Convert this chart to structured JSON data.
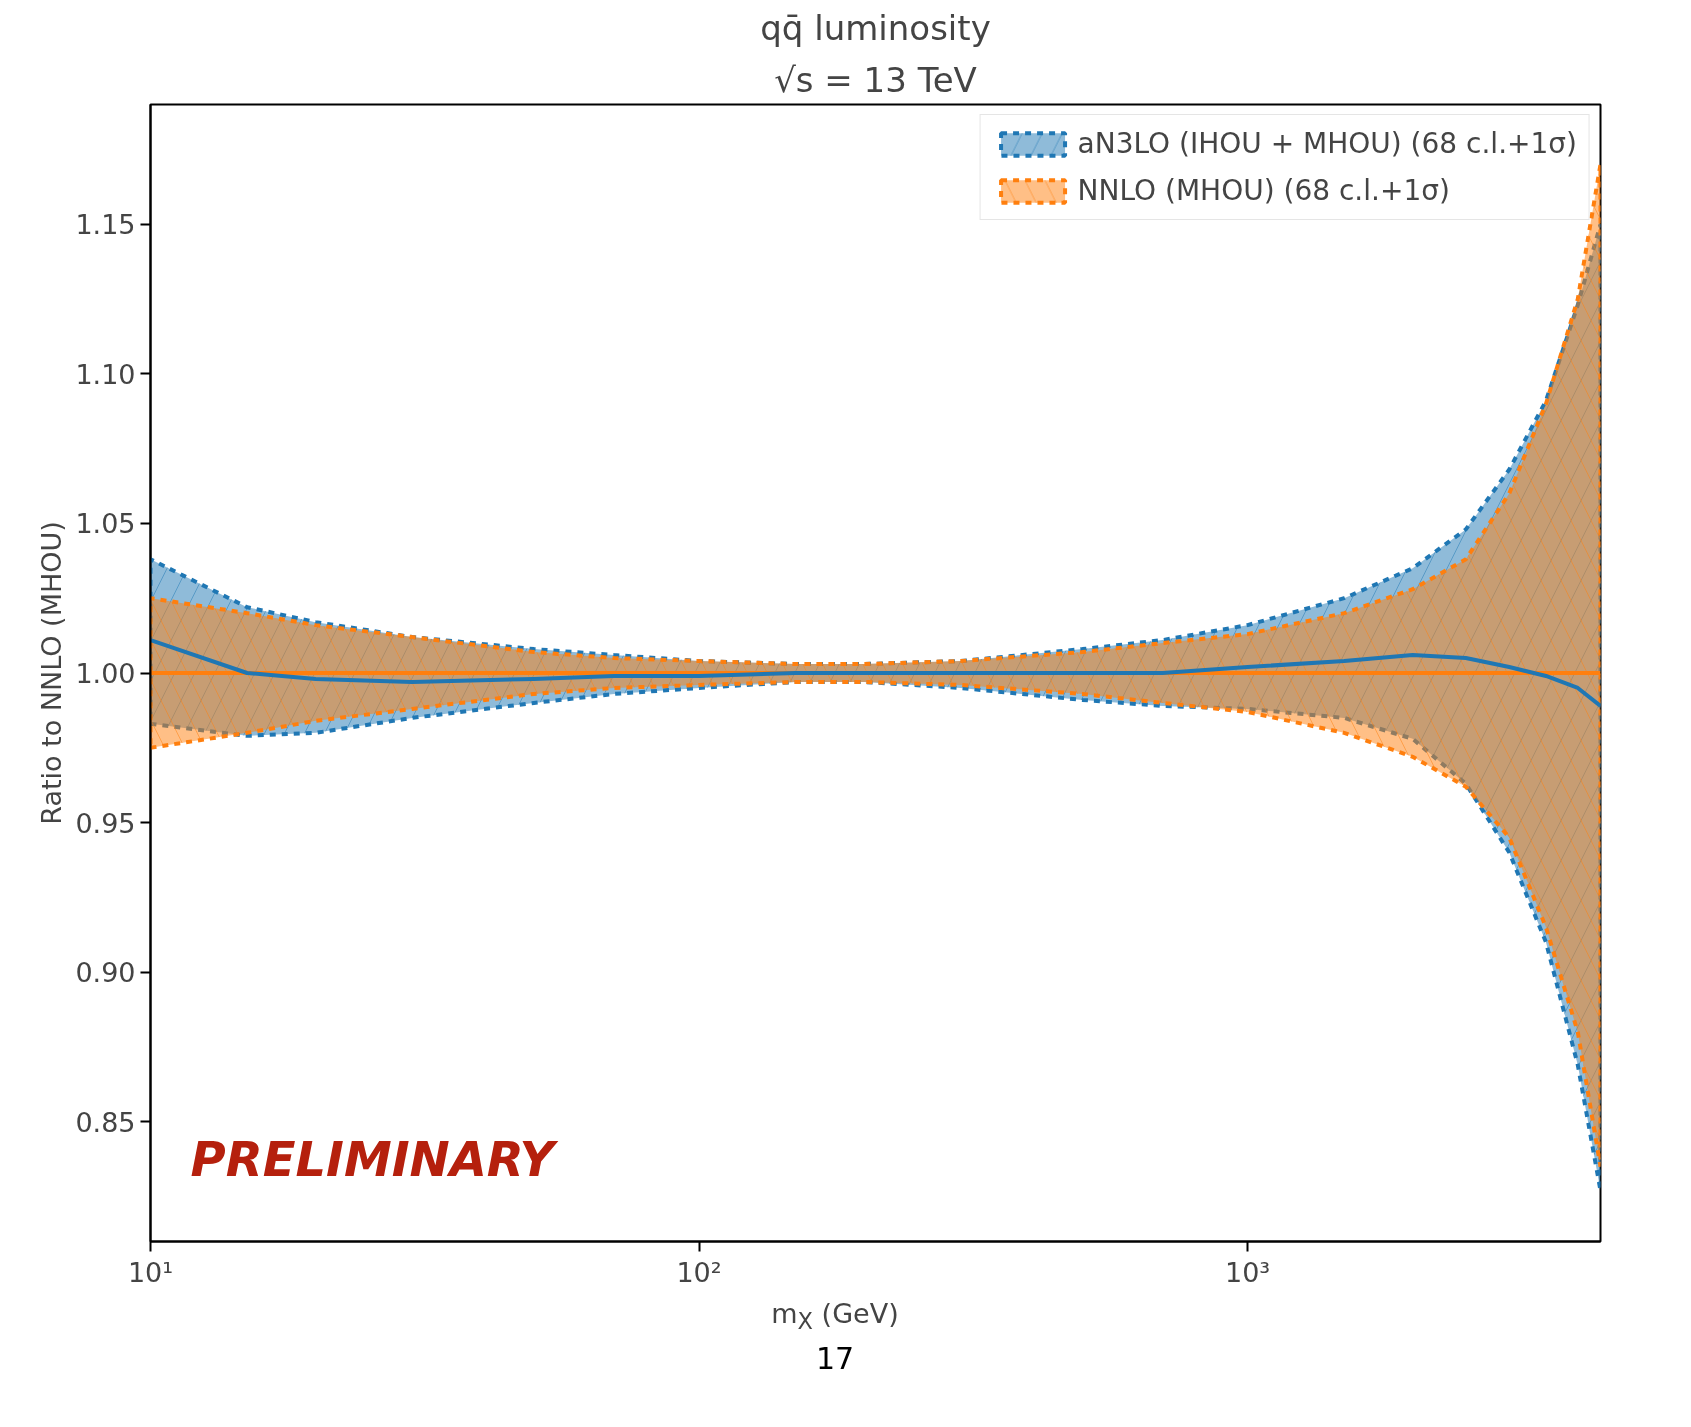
{
  "chart_data": {
    "type": "line",
    "title": "qq̄ luminosity",
    "subtitle": "√s = 13 TeV",
    "xlabel": "m$_{X}$ (GeV)",
    "ylabel": "Ratio to NNLO (MHOU)",
    "annotations": [
      "PRELIMINARY",
      "17"
    ],
    "x": [
      10,
      15,
      20,
      30,
      50,
      70,
      100,
      150,
      200,
      300,
      500,
      700,
      1000,
      1500,
      2000,
      2500,
      3000,
      3500,
      4000,
      4400
    ],
    "series": [
      {
        "name": "aN3LO (IHOU + MHOU) (68 c.l.+1σ)",
        "color": "#1f77b4",
        "values": [
          1.011,
          1.0,
          0.998,
          0.997,
          0.998,
          0.999,
          0.999,
          1.0,
          1.0,
          1.0,
          1.0,
          1.0,
          1.002,
          1.004,
          1.006,
          1.005,
          1.002,
          0.999,
          0.995,
          0.989
        ],
        "lower": [
          0.983,
          0.979,
          0.98,
          0.985,
          0.99,
          0.993,
          0.995,
          0.997,
          0.997,
          0.995,
          0.991,
          0.989,
          0.988,
          0.985,
          0.978,
          0.963,
          0.94,
          0.91,
          0.869,
          0.827
        ],
        "upper": [
          1.038,
          1.022,
          1.017,
          1.012,
          1.008,
          1.006,
          1.004,
          1.003,
          1.003,
          1.004,
          1.008,
          1.011,
          1.016,
          1.025,
          1.035,
          1.048,
          1.068,
          1.091,
          1.123,
          1.15
        ]
      },
      {
        "name": "NNLO (MHOU) (68 c.l.+1σ)",
        "color": "#ff7f0e",
        "values": [
          1.0,
          1.0,
          1.0,
          1.0,
          1.0,
          1.0,
          1.0,
          1.0,
          1.0,
          1.0,
          1.0,
          1.0,
          1.0,
          1.0,
          1.0,
          1.0,
          1.0,
          1.0,
          1.0,
          1.0
        ],
        "lower": [
          0.975,
          0.98,
          0.984,
          0.988,
          0.993,
          0.995,
          0.996,
          0.997,
          0.997,
          0.996,
          0.993,
          0.99,
          0.987,
          0.98,
          0.972,
          0.962,
          0.945,
          0.915,
          0.88,
          0.835
        ],
        "upper": [
          1.025,
          1.02,
          1.016,
          1.012,
          1.007,
          1.005,
          1.004,
          1.003,
          1.003,
          1.004,
          1.007,
          1.01,
          1.013,
          1.02,
          1.028,
          1.038,
          1.06,
          1.09,
          1.125,
          1.17
        ]
      }
    ],
    "log": "x",
    "xlim": [
      10,
      4400
    ],
    "ylim": [
      0.81,
      1.19
    ],
    "xticks": [
      {
        "value": 10,
        "label": "10¹"
      },
      {
        "value": 100,
        "label": "10²"
      },
      {
        "value": 1000,
        "label": "10³"
      }
    ],
    "yticks": [
      {
        "value": 0.85,
        "label": "0.85"
      },
      {
        "value": 0.9,
        "label": "0.90"
      },
      {
        "value": 0.95,
        "label": "0.95"
      },
      {
        "value": 1.0,
        "label": "1.00"
      },
      {
        "value": 1.05,
        "label": "1.05"
      },
      {
        "value": 1.1,
        "label": "1.10"
      },
      {
        "value": 1.15,
        "label": "1.15"
      }
    ],
    "grid": false,
    "legend": "top right",
    "line_style": "solid"
  }
}
